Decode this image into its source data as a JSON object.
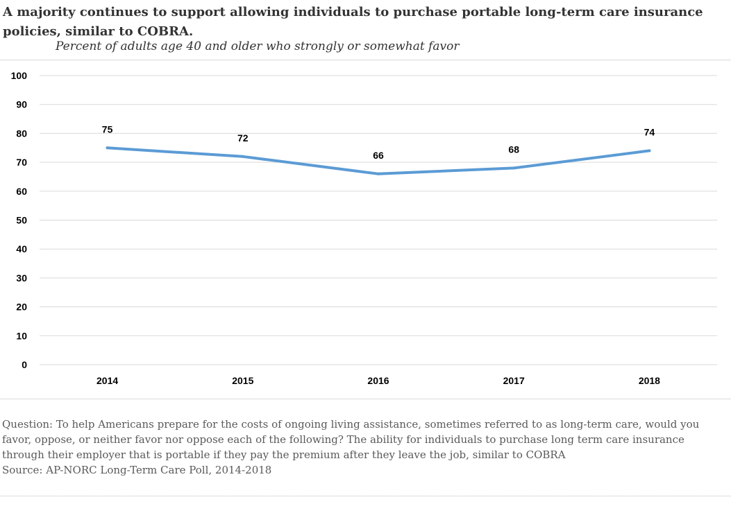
{
  "title": "A majority continues to support allowing individuals to purchase portable long-term care insurance policies, similar to COBRA.",
  "subtitle": "Percent of adults age 40 and older who strongly or somewhat favor",
  "footnote": {
    "question": "Question: To help Americans prepare for the costs of ongoing living assistance, sometimes referred to as long-term care, would you favor, oppose, or neither favor nor oppose each of the following? The ability for individuals to purchase long term care insurance through their employer that is portable if they pay the premium after they leave the job, similar to COBRA",
    "source": "Source: AP-NORC Long-Term Care Poll, 2014-2018"
  },
  "chart_data": {
    "type": "line",
    "title": "A majority continues to support allowing individuals to purchase portable long-term care insurance policies, similar to COBRA.",
    "subtitle": "Percent of adults age 40 and older who strongly or somewhat favor",
    "categories": [
      "2014",
      "2015",
      "2016",
      "2017",
      "2018"
    ],
    "series": [
      {
        "values": [
          75,
          72,
          66,
          68,
          74
        ],
        "color": "#5b9bd5"
      }
    ],
    "ylim": [
      0,
      100
    ],
    "yticks": [
      0,
      10,
      20,
      30,
      40,
      50,
      60,
      70,
      80,
      90,
      100
    ],
    "grid": true,
    "data_labels": true,
    "gridline_color": "#d9d9d9"
  }
}
